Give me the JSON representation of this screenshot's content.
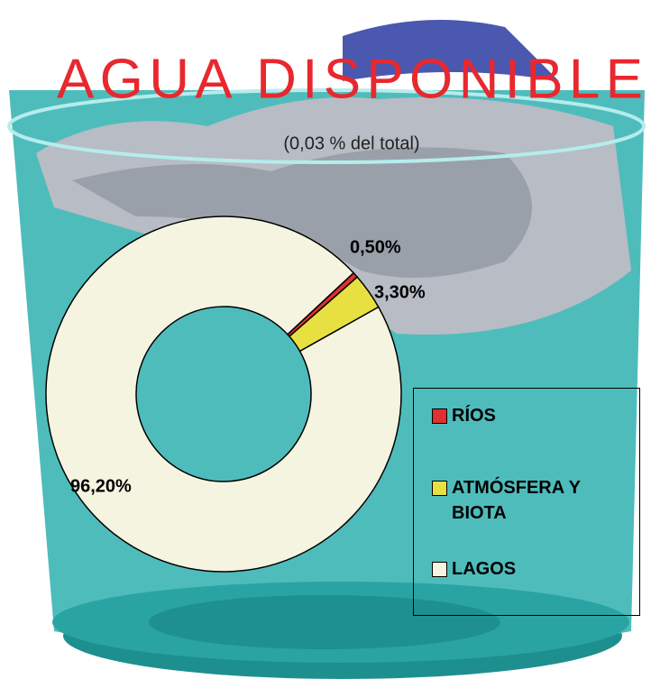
{
  "chart_data": {
    "type": "pie",
    "title": "AGUA DISPONIBLE",
    "subtitle": "(0,03 % del total)",
    "categories": [
      "RÍOS",
      "ATMÓSFERA Y BIOTA",
      "LAGOS"
    ],
    "values": [
      0.5,
      3.3,
      96.2
    ],
    "value_labels": [
      "0,50%",
      "3,30%",
      "96,20%"
    ],
    "colors": [
      "#e03030",
      "#e8e040",
      "#f4f4e0"
    ],
    "donut": true
  }
}
